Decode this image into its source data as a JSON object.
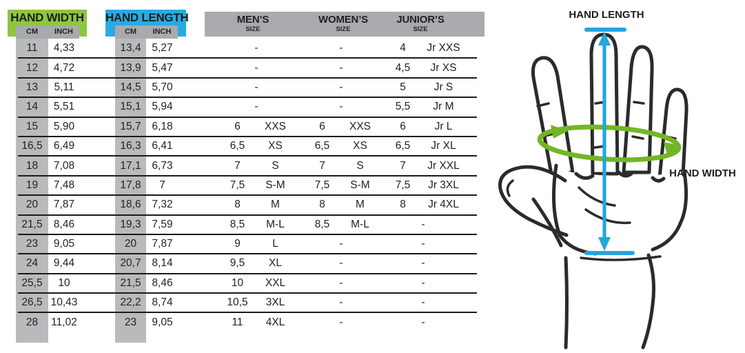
{
  "table": {
    "headers": {
      "hand_width": {
        "title": "HAND WIDTH",
        "cm": "CM",
        "inch": "INCH"
      },
      "hand_length": {
        "title": "HAND LENGTH",
        "cm": "CM",
        "inch": "INCH"
      },
      "mens": {
        "title": "MEN’S",
        "sub": "SIZE"
      },
      "womens": {
        "title": "WOMEN’S",
        "sub": "SIZE"
      },
      "juniors": {
        "title": "JUNIOR’S",
        "sub": "SIZE"
      }
    },
    "rows": [
      {
        "width_cm": "11",
        "width_in": "4,33",
        "length_cm": "13,4",
        "length_in": "5,27",
        "mens_num": "-",
        "mens_size": "",
        "womens_num": "-",
        "womens_size": "",
        "juniors_num": "4",
        "juniors_size": "Jr XXS"
      },
      {
        "width_cm": "12",
        "width_in": "4,72",
        "length_cm": "13,9",
        "length_in": "5,47",
        "mens_num": "-",
        "mens_size": "",
        "womens_num": "-",
        "womens_size": "",
        "juniors_num": "4,5",
        "juniors_size": "Jr XS"
      },
      {
        "width_cm": "13",
        "width_in": "5,11",
        "length_cm": "14,5",
        "length_in": "5,70",
        "mens_num": "-",
        "mens_size": "",
        "womens_num": "-",
        "womens_size": "",
        "juniors_num": "5",
        "juniors_size": "Jr S"
      },
      {
        "width_cm": "14",
        "width_in": "5,51",
        "length_cm": "15,1",
        "length_in": "5,94",
        "mens_num": "-",
        "mens_size": "",
        "womens_num": "-",
        "womens_size": "",
        "juniors_num": "5,5",
        "juniors_size": "Jr M"
      },
      {
        "width_cm": "15",
        "width_in": "5,90",
        "length_cm": "15,7",
        "length_in": "6,18",
        "mens_num": "6",
        "mens_size": "XXS",
        "womens_num": "6",
        "womens_size": "XXS",
        "juniors_num": "6",
        "juniors_size": "Jr L"
      },
      {
        "width_cm": "16,5",
        "width_in": "6,49",
        "length_cm": "16,3",
        "length_in": "6,41",
        "mens_num": "6,5",
        "mens_size": "XS",
        "womens_num": "6,5",
        "womens_size": "XS",
        "juniors_num": "6,5",
        "juniors_size": "Jr XL"
      },
      {
        "width_cm": "18",
        "width_in": "7,08",
        "length_cm": "17,1",
        "length_in": "6,73",
        "mens_num": "7",
        "mens_size": "S",
        "womens_num": "7",
        "womens_size": "S",
        "juniors_num": "7",
        "juniors_size": "Jr XXL"
      },
      {
        "width_cm": "19",
        "width_in": "7,48",
        "length_cm": "17,8",
        "length_in": "7",
        "mens_num": "7,5",
        "mens_size": "S-M",
        "womens_num": "7,5",
        "womens_size": "S-M",
        "juniors_num": "7,5",
        "juniors_size": "Jr 3XL"
      },
      {
        "width_cm": "20",
        "width_in": "7,87",
        "length_cm": "18,6",
        "length_in": "7,32",
        "mens_num": "8",
        "mens_size": "M",
        "womens_num": "8",
        "womens_size": "M",
        "juniors_num": "8",
        "juniors_size": "Jr 4XL"
      },
      {
        "width_cm": "21,5",
        "width_in": "8,46",
        "length_cm": "19,3",
        "length_in": "7,59",
        "mens_num": "8,5",
        "mens_size": "M-L",
        "womens_num": "8,5",
        "womens_size": "M-L",
        "juniors_num": "-",
        "juniors_size": ""
      },
      {
        "width_cm": "23",
        "width_in": "9,05",
        "length_cm": "20",
        "length_in": "7,87",
        "mens_num": "9",
        "mens_size": "L",
        "womens_num": "-",
        "womens_size": "",
        "juniors_num": "-",
        "juniors_size": ""
      },
      {
        "width_cm": "24",
        "width_in": "9,44",
        "length_cm": "20,7",
        "length_in": "8,14",
        "mens_num": "9,5",
        "mens_size": "XL",
        "womens_num": "-",
        "womens_size": "",
        "juniors_num": "-",
        "juniors_size": ""
      },
      {
        "width_cm": "25,5",
        "width_in": "10",
        "length_cm": "21,5",
        "length_in": "8,46",
        "mens_num": "10",
        "mens_size": "XXL",
        "womens_num": "-",
        "womens_size": "",
        "juniors_num": "-",
        "juniors_size": ""
      },
      {
        "width_cm": "26,5",
        "width_in": "10,43",
        "length_cm": "22,2",
        "length_in": "8,74",
        "mens_num": "10,5",
        "mens_size": "3XL",
        "womens_num": "-",
        "womens_size": "",
        "juniors_num": "-",
        "juniors_size": ""
      },
      {
        "width_cm": "28",
        "width_in": "11,02",
        "length_cm": "23",
        "length_in": "9,05",
        "mens_num": "11",
        "mens_size": "4XL",
        "womens_num": "-",
        "womens_size": "",
        "juniors_num": "-",
        "juniors_size": ""
      }
    ]
  },
  "diagram": {
    "hand_length_label": "HAND LENGTH",
    "hand_width_label": "HAND WIDTH"
  },
  "colors": {
    "header_green": "#8dc63f",
    "header_blue": "#29abe2",
    "bar_gray": "#a8aaad",
    "stripe_gray": "#b9babc",
    "rule_black": "#1a1a1a",
    "text": "#231f20",
    "arrow_blue": "#25a5dd",
    "loop_green": "#72b626",
    "hand_outline": "#2b2b2b"
  }
}
